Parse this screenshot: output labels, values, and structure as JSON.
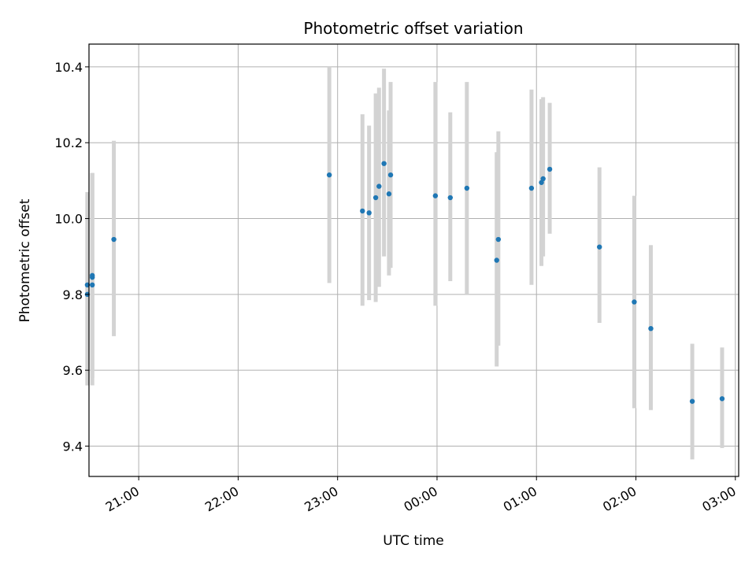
{
  "chart_data": {
    "type": "scatter",
    "title": "Photometric offset variation",
    "xlabel": "UTC time",
    "ylabel": "Photometric offset",
    "x_ticks": [
      "21:00",
      "22:00",
      "23:00",
      "00:00",
      "01:00",
      "02:00",
      "03:00"
    ],
    "y_ticks": [
      "9.4",
      "9.6",
      "9.8",
      "10.0",
      "10.2",
      "10.4"
    ],
    "ylim": [
      9.32,
      10.46
    ],
    "xlim": [
      "20:30",
      "03:02"
    ],
    "grid": true,
    "colors": {
      "marker": "#1f77b4",
      "errorbar": "#d3d3d3",
      "grid": "#b0b0b0"
    },
    "points": [
      {
        "time": "20:29",
        "y": 9.8,
        "err_low": 9.56,
        "err_high": 10.06
      },
      {
        "time": "20:29",
        "y": 9.825,
        "err_low": 9.56,
        "err_high": 10.07
      },
      {
        "time": "20:32",
        "y": 9.845,
        "err_low": 9.56,
        "err_high": 10.12
      },
      {
        "time": "20:32",
        "y": 9.85,
        "err_low": 9.58,
        "err_high": 10.12
      },
      {
        "time": "20:32",
        "y": 9.825,
        "err_low": 9.6,
        "err_high": 10.12
      },
      {
        "time": "20:45",
        "y": 9.945,
        "err_low": 9.69,
        "err_high": 10.205
      },
      {
        "time": "22:55",
        "y": 10.115,
        "err_low": 9.83,
        "err_high": 10.4
      },
      {
        "time": "23:15",
        "y": 10.02,
        "err_low": 9.77,
        "err_high": 10.275
      },
      {
        "time": "23:19",
        "y": 10.015,
        "err_low": 9.785,
        "err_high": 10.245
      },
      {
        "time": "23:23",
        "y": 10.055,
        "err_low": 9.78,
        "err_high": 10.33
      },
      {
        "time": "23:25",
        "y": 10.085,
        "err_low": 9.82,
        "err_high": 10.345
      },
      {
        "time": "23:28",
        "y": 10.145,
        "err_low": 9.9,
        "err_high": 10.395
      },
      {
        "time": "23:31",
        "y": 10.065,
        "err_low": 9.85,
        "err_high": 10.285
      },
      {
        "time": "23:32",
        "y": 10.115,
        "err_low": 9.87,
        "err_high": 10.36
      },
      {
        "time": "23:59",
        "y": 10.06,
        "err_low": 9.77,
        "err_high": 10.36
      },
      {
        "time": "00:08",
        "y": 10.055,
        "err_low": 9.835,
        "err_high": 10.28
      },
      {
        "time": "00:18",
        "y": 10.08,
        "err_low": 9.8,
        "err_high": 10.36
      },
      {
        "time": "00:36",
        "y": 9.89,
        "err_low": 9.61,
        "err_high": 10.175
      },
      {
        "time": "00:37",
        "y": 9.945,
        "err_low": 9.665,
        "err_high": 10.23
      },
      {
        "time": "00:57",
        "y": 10.08,
        "err_low": 9.825,
        "err_high": 10.34
      },
      {
        "time": "01:03",
        "y": 10.095,
        "err_low": 9.875,
        "err_high": 10.315
      },
      {
        "time": "01:04",
        "y": 10.105,
        "err_low": 9.9,
        "err_high": 10.32
      },
      {
        "time": "01:08",
        "y": 10.13,
        "err_low": 9.96,
        "err_high": 10.305
      },
      {
        "time": "01:38",
        "y": 9.925,
        "err_low": 9.725,
        "err_high": 10.135
      },
      {
        "time": "01:59",
        "y": 9.78,
        "err_low": 9.5,
        "err_high": 10.06
      },
      {
        "time": "02:09",
        "y": 9.71,
        "err_low": 9.495,
        "err_high": 9.93
      },
      {
        "time": "02:34",
        "y": 9.518,
        "err_low": 9.365,
        "err_high": 9.67
      },
      {
        "time": "02:52",
        "y": 9.525,
        "err_low": 9.395,
        "err_high": 9.66
      }
    ]
  }
}
